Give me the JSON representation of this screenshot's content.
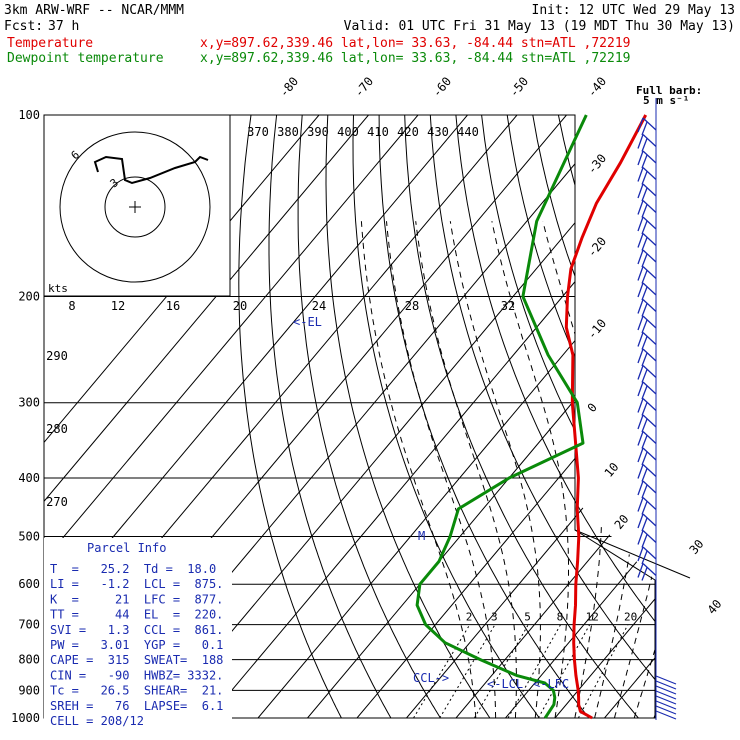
{
  "header": {
    "model": "3km ARW-WRF -- NCAR/MMM",
    "init": "Init: 12 UTC Wed 29 May 13",
    "fcst_label": "Fcst:",
    "fcst_value": "37 h",
    "valid": "Valid: 01 UTC Fri 31 May 13 (19 MDT Thu 30 May 13)",
    "temperature_label": "Temperature",
    "dewpoint_label": "Dewpoint temperature",
    "temperature_info": "x,y=897.62,339.46   lat,lon= 33.63, -84.44   stn=ATL ,72219",
    "dewpoint_info": "x,y=897.62,339.46   lat,lon= 33.63, -84.44   stn=ATL ,72219"
  },
  "colors": {
    "temperature": "#e00000",
    "dewpoint": "#0a8a0a",
    "barbs": "#1a2bb0",
    "isobar": "#000000",
    "isotherm": "#000000",
    "moist_adiabat": "#000000"
  },
  "chart_data": {
    "type": "line",
    "chart_kind": "skew-T log-P sounding",
    "pressure_levels": [
      100,
      200,
      300,
      400,
      500,
      600,
      700,
      800,
      900,
      1000
    ],
    "pressure_units": "hPa",
    "isotherm_labels": [
      -80,
      -70,
      -60,
      -50,
      -40,
      -30,
      -20,
      -10,
      0,
      10,
      20,
      30,
      40
    ],
    "theta_labels": [
      370,
      380,
      390,
      400,
      410,
      420,
      430,
      440
    ],
    "theta_left_labels": [
      290,
      280,
      270
    ],
    "mixing_ratio_labels": [
      2,
      3,
      5,
      8,
      12,
      20
    ],
    "hodograph_speed_labels": [
      8,
      12,
      16,
      20,
      24,
      28,
      32
    ],
    "hodograph_units": "kts",
    "full_barb_note": "Full barb:",
    "full_barb_value": "5 m s⁻¹",
    "series": [
      {
        "name": "Temperature",
        "points": [
          [
            1000,
            27.5
          ],
          [
            975,
            24
          ],
          [
            950,
            22.5
          ],
          [
            925,
            21.3
          ],
          [
            900,
            20
          ],
          [
            850,
            17
          ],
          [
            800,
            14
          ],
          [
            750,
            11
          ],
          [
            700,
            8
          ],
          [
            650,
            5
          ],
          [
            600,
            1.5
          ],
          [
            550,
            -2
          ],
          [
            500,
            -6
          ],
          [
            450,
            -11
          ],
          [
            400,
            -16
          ],
          [
            350,
            -22.5
          ],
          [
            300,
            -30
          ],
          [
            250,
            -38
          ],
          [
            225,
            -44
          ],
          [
            200,
            -49
          ],
          [
            180,
            -53
          ],
          [
            160,
            -56
          ],
          [
            140,
            -59
          ],
          [
            120,
            -61
          ],
          [
            100,
            -64
          ]
        ]
      },
      {
        "name": "Dewpoint temperature",
        "points": [
          [
            1000,
            18
          ],
          [
            950,
            17.5
          ],
          [
            925,
            16.5
          ],
          [
            900,
            15
          ],
          [
            875,
            12
          ],
          [
            850,
            5
          ],
          [
            800,
            -5
          ],
          [
            750,
            -15
          ],
          [
            700,
            -22
          ],
          [
            650,
            -27
          ],
          [
            600,
            -30
          ],
          [
            550,
            -30
          ],
          [
            500,
            -32
          ],
          [
            450,
            -35
          ],
          [
            400,
            -30
          ],
          [
            350,
            -21
          ],
          [
            300,
            -29
          ],
          [
            250,
            -43
          ],
          [
            200,
            -58
          ],
          [
            150,
            -68
          ],
          [
            100,
            -76
          ]
        ]
      }
    ],
    "annotations": [
      {
        "text": "<-EL",
        "pressure": 220
      },
      {
        "text": "M",
        "pressure": 500
      },
      {
        "text": "CCL->",
        "pressure": 861
      },
      {
        "text": "<-LCL",
        "pressure": 875
      },
      {
        "text": "<-LFC",
        "pressure": 877
      }
    ]
  },
  "parcel_info": {
    "title": "Parcel Info",
    "rows": [
      "T  =   25.2  Td =  18.0",
      "LI =   -1.2  LCL =  875.",
      "K  =     21  LFC =  877.",
      "TT =     44  EL  =  220.",
      "SVI =   1.3  CCL =  861.",
      "PW =   3.01  YGP =   0.1",
      "CAPE =  315  SWEAT=  188",
      "CIN =   -90  HWBZ= 3332.",
      "Tc =   26.5  SHEAR=  21.",
      "SREH =   76  LAPSE=  6.1",
      "CELL = 208/12"
    ]
  }
}
